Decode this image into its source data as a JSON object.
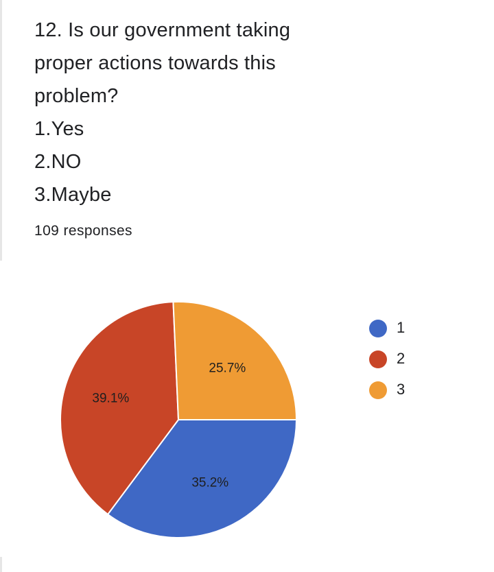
{
  "question": {
    "lines": [
      "12. Is our government taking",
      "proper actions towards this",
      "problem?",
      "1.Yes",
      "2.NO",
      "3.Maybe"
    ]
  },
  "responses": "109 responses",
  "chart_data": {
    "type": "pie",
    "slices": [
      {
        "label": "1",
        "value": 35.2,
        "display": "35.2%",
        "color": "#3f68c5"
      },
      {
        "label": "2",
        "value": 39.1,
        "display": "39.1%",
        "color": "#c84527"
      },
      {
        "label": "3",
        "value": 25.7,
        "display": "25.7%",
        "color": "#ef9b34"
      }
    ],
    "start_angle_deg": 0,
    "direction": "clockwise",
    "legend": {
      "placement": "right",
      "entries": [
        "1",
        "2",
        "3"
      ]
    }
  }
}
